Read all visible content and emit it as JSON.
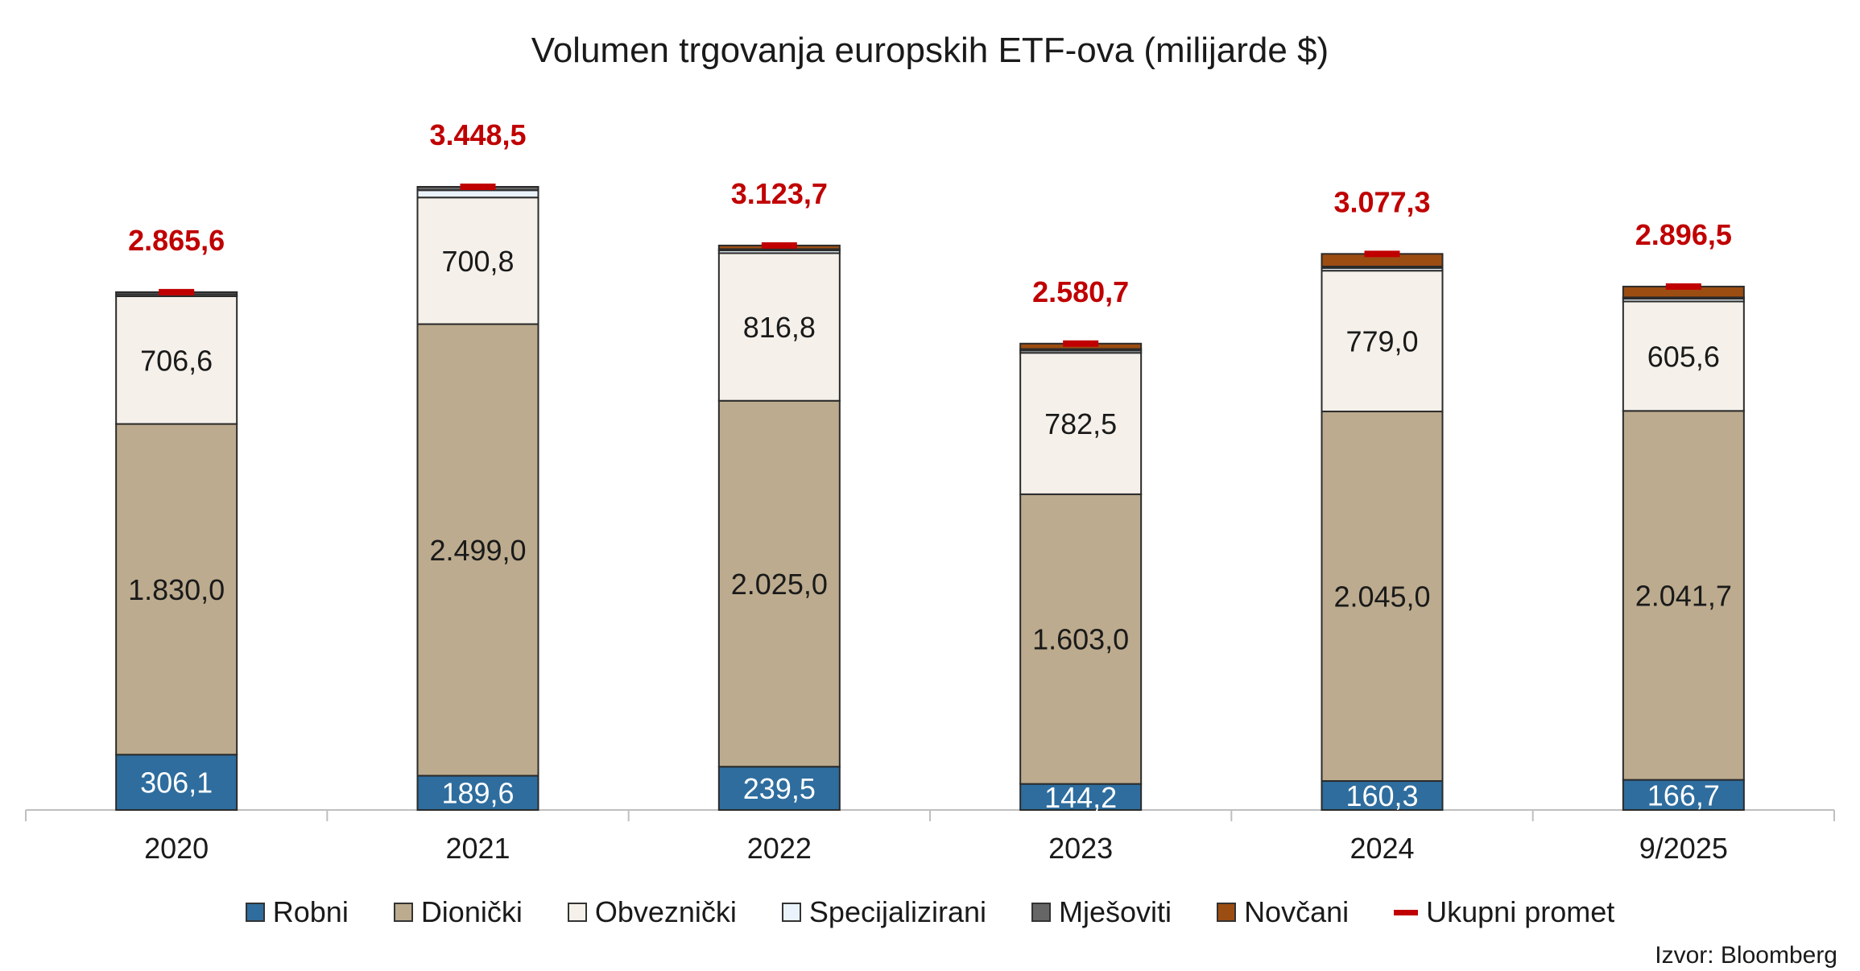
{
  "chart_data": {
    "type": "bar",
    "stacked": true,
    "title": "Volumen trgovanja europskih ETF-ova (milijarde $)",
    "categories": [
      "2020",
      "2021",
      "2022",
      "2023",
      "2024",
      "9/2025"
    ],
    "series": [
      {
        "name": "Robni",
        "color": "#2e6d9e",
        "values": [
          306.1,
          189.6,
          239.5,
          144.2,
          160.3,
          166.7
        ],
        "labels": [
          "306,1",
          "189,6",
          "239,5",
          "144,2",
          "160,3",
          "166,7"
        ]
      },
      {
        "name": "Dionički",
        "color": "#bcab8e",
        "values": [
          1830.0,
          2499.0,
          2025.0,
          1603.0,
          2045.0,
          2041.7
        ],
        "labels": [
          "1.830,0",
          "2.499,0",
          "2.025,0",
          "1.603,0",
          "2.045,0",
          "2.041,7"
        ]
      },
      {
        "name": "Obveznički",
        "color": "#f5f1ea",
        "values": [
          706.6,
          700.8,
          816.8,
          782.5,
          779.0,
          605.6
        ],
        "labels": [
          "706,6",
          "700,8",
          "816,8",
          "782,5",
          "779,0",
          "605,6"
        ]
      },
      {
        "name": "Specijalizirani",
        "color": "#eaf3fb",
        "values": [
          10,
          40,
          15,
          12,
          15,
          15
        ]
      },
      {
        "name": "Mješoviti",
        "color": "#666666",
        "values": [
          12,
          19,
          7.4,
          9,
          8,
          7.5
        ]
      },
      {
        "name": "Novčani",
        "color": "#9c4d12",
        "values": [
          1,
          0.1,
          20,
          30,
          70,
          60
        ]
      }
    ],
    "totals": {
      "name": "Ukupni promet",
      "color": "#c00000",
      "values": [
        2865.6,
        3448.5,
        3123.7,
        2580.7,
        3077.3,
        2896.5
      ],
      "labels": [
        "2.865,6",
        "3.448,5",
        "3.123,7",
        "2.580,7",
        "3.077,3",
        "2.896,5"
      ]
    },
    "ylim": [
      0,
      3448.5
    ],
    "xlabel": "",
    "ylabel": "",
    "legend_position": "bottom"
  },
  "legend": [
    "Robni",
    "Dionički",
    "Obveznički",
    "Specijalizirani",
    "Mješoviti",
    "Novčani",
    "Ukupni promet"
  ],
  "source": "Izvor: Bloomberg"
}
